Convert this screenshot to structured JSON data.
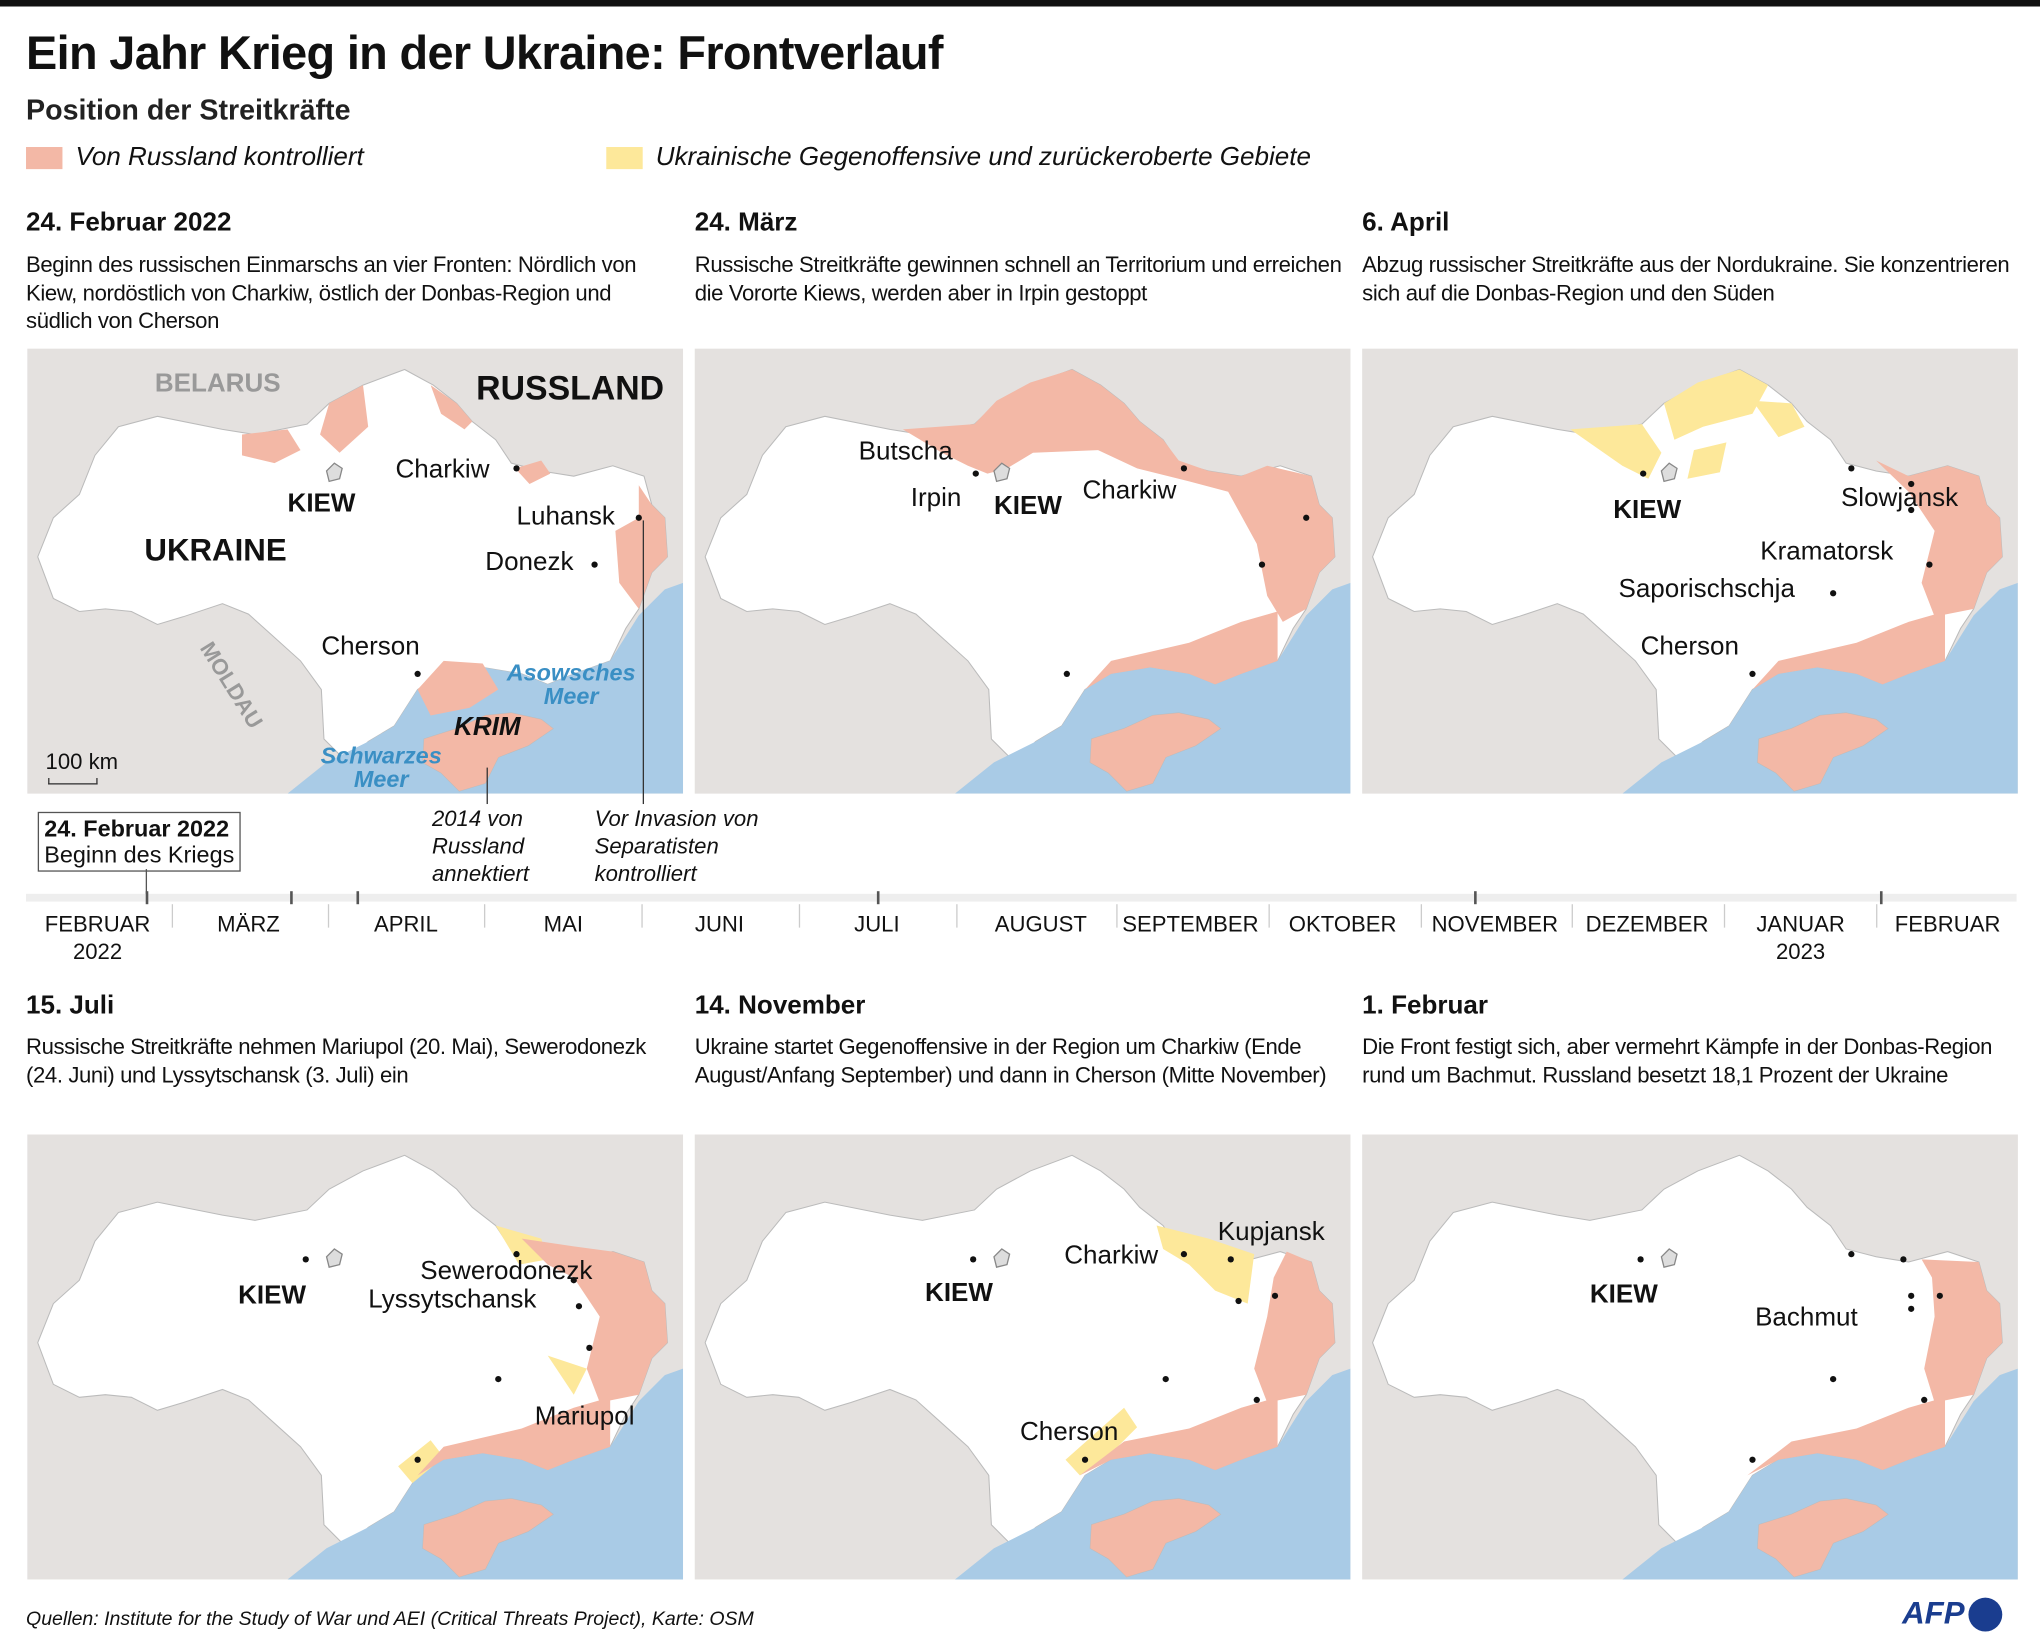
{
  "title": "Ein Jahr Krieg in der Ukraine: Frontverlauf",
  "subtitle": "Position der Streitkräfte",
  "legend": [
    {
      "label": "Von Russland kontrolliert",
      "color": "#f3b8a6"
    },
    {
      "label": "Ukrainische Gegenoffensive und zurückeroberte Gebiete",
      "color": "#fde89a"
    }
  ],
  "colors": {
    "russia_controlled": "#f3b8a6",
    "counteroffensive": "#fde89a",
    "sea": "#a9cbe6",
    "land": "#ffffff",
    "neighbors": "#e4e1df"
  },
  "panels": [
    {
      "heading": "24. Februar 2022",
      "desc": "Beginn des russischen Einmarschs an vier Fronten: Nördlich von Kiew, nordöstlich von Charkiw, östlich der Donbas-Region und südlich von Cherson",
      "labels": {
        "belarus": "BELARUS",
        "russland": "RUSSLAND",
        "ukraine": "UKRAINE",
        "moldau": "MOLDAU",
        "kiew": "KIEW",
        "charkiw": "Charkiw",
        "luhansk": "Luhansk",
        "donezk": "Donezk",
        "cherson": "Cherson",
        "asow": "Asowsches Meer",
        "schwarz": "Schwarzes Meer",
        "krim": "KRIM",
        "scale": "100 km"
      }
    },
    {
      "heading": "24. März",
      "desc": "Russische Streitkräfte gewinnen schnell an Territorium und erreichen die Vororte Kiews, werden aber in Irpin gestoppt",
      "labels": {
        "butscha": "Butscha",
        "irpin": "Irpin",
        "kiew": "KIEW",
        "charkiw": "Charkiw"
      }
    },
    {
      "heading": "6. April",
      "desc": "Abzug russischer Streitkräfte aus der Nordukraine. Sie konzentrieren sich auf die Donbas-Region und den Süden",
      "labels": {
        "kiew": "KIEW",
        "slowjansk": "Slowjansk",
        "kramatorsk": "Kramatorsk",
        "saporischschja": "Saporischschja",
        "cherson": "Cherson"
      }
    },
    {
      "heading": "15. Juli",
      "desc": "Russische Streitkräfte nehmen Mariupol (20. Mai), Sewerodonezk (24. Juni) und Lyssytschansk (3. Juli) ein",
      "labels": {
        "kiew": "KIEW",
        "sewerodonezk": "Sewerodonezk",
        "lyssytschansk": "Lyssytschansk",
        "mariupol": "Mariupol"
      }
    },
    {
      "heading": "14. November",
      "desc": "Ukraine startet Gegenoffensive in der Region um Charkiw (Ende August/Anfang September) und dann in Cherson (Mitte November)",
      "labels": {
        "kiew": "KIEW",
        "charkiw": "Charkiw",
        "kupjansk": "Kupjansk",
        "cherson": "Cherson"
      }
    },
    {
      "heading": "1. Februar",
      "desc": "Die Front festigt sich, aber vermehrt Kämpfe in der Donbas-Region rund um Bachmut. Russland besetzt 18,1 Prozent der Ukraine",
      "labels": {
        "kiew": "KIEW",
        "bachmut": "Bachmut"
      }
    }
  ],
  "annotations": {
    "crimea": "2014 von Russland annektiert",
    "donbas": "Vor Invasion von Separatisten kontrolliert"
  },
  "timeline": {
    "start_box": {
      "date": "24. Februar 2022",
      "text": "Beginn des Kriegs"
    },
    "months": [
      "FEBRUAR 2022",
      "MÄRZ",
      "APRIL",
      "MAI",
      "JUNI",
      "JULI",
      "AUGUST",
      "SEPTEMBER",
      "OKTOBER",
      "NOVEMBER",
      "DEZEMBER",
      "JANUAR 2023",
      "FEBRUAR"
    ],
    "markers": [
      "24. Februar 2022",
      "24. März",
      "6. April",
      "15. Juli",
      "14. November",
      "1. Februar"
    ]
  },
  "source": "Quellen: Institute for the Study of War und AEI (Critical Threats Project), Karte: OSM",
  "logo": "AFP"
}
